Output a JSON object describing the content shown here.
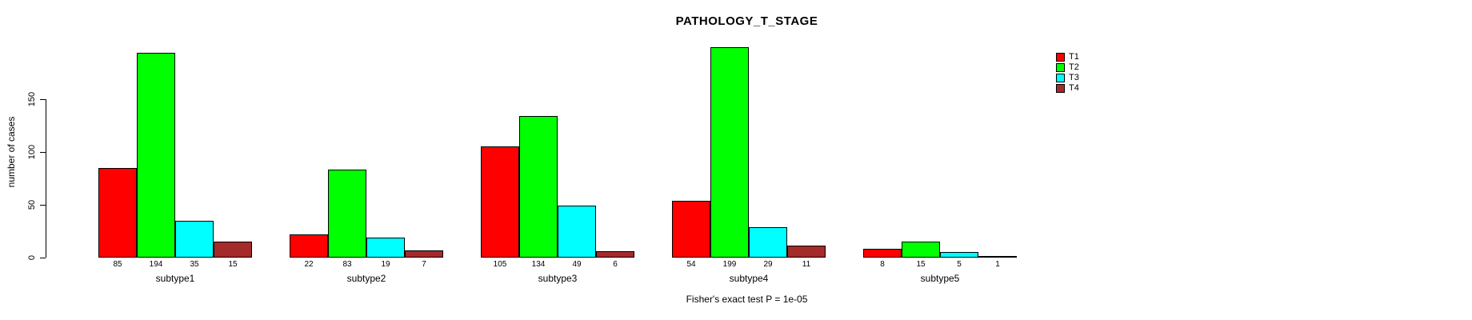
{
  "chart_data": {
    "type": "bar",
    "title": "PATHOLOGY_T_STAGE",
    "xlabel": "",
    "ylabel": "number of cases",
    "caption": "Fisher's exact test P = 1e-05",
    "categories": [
      "subtype1",
      "subtype2",
      "subtype3",
      "subtype4",
      "subtype5"
    ],
    "series": [
      {
        "name": "T1",
        "color": "#FF0000",
        "values": [
          85,
          22,
          105,
          54,
          8
        ]
      },
      {
        "name": "T2",
        "color": "#00FF00",
        "values": [
          194,
          83,
          134,
          199,
          15
        ]
      },
      {
        "name": "T3",
        "color": "#00FFFF",
        "values": [
          35,
          19,
          49,
          29,
          5
        ]
      },
      {
        "name": "T4",
        "color": "#A52A2A",
        "values": [
          15,
          7,
          6,
          11,
          1
        ]
      }
    ],
    "y_ticks": [
      0,
      50,
      100,
      150
    ],
    "ylim": [
      0,
      200
    ],
    "grid": false,
    "bar_value_labels": true,
    "legend": {
      "position": "top-right",
      "entries": [
        "T1",
        "T2",
        "T3",
        "T4"
      ]
    }
  }
}
